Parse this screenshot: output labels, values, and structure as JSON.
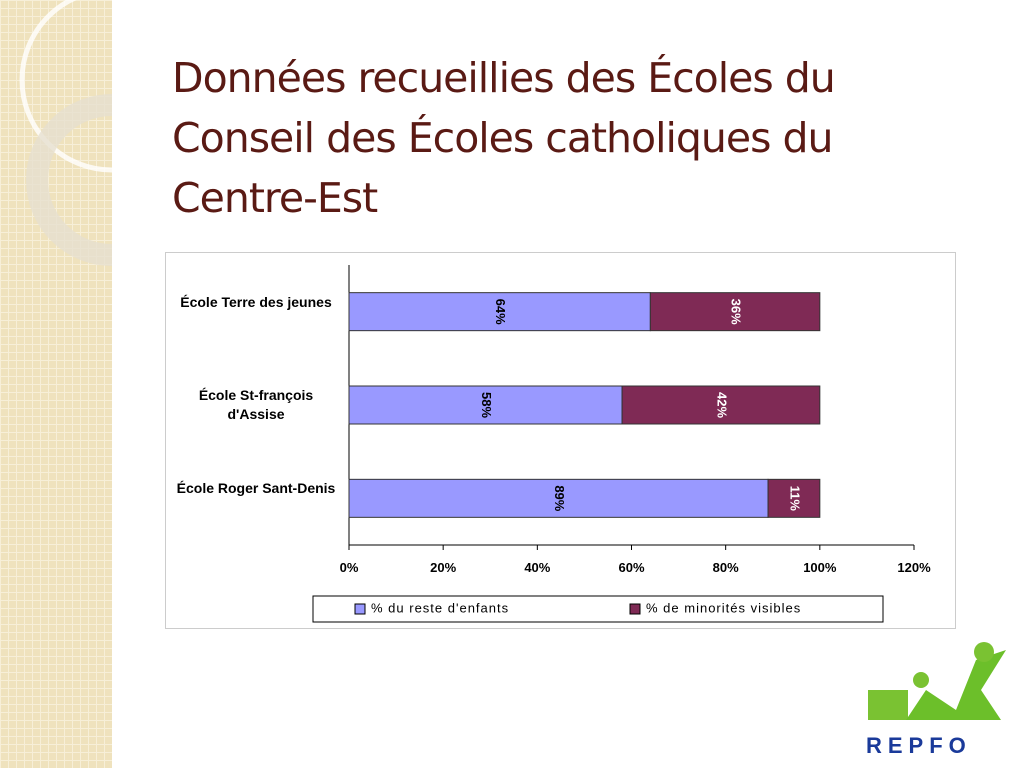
{
  "chart_data": {
    "type": "stacked-barh",
    "title": "Données recueillies des Écoles du Conseil des Écoles catholiques du Centre-Est",
    "categories": [
      "École Terre des jeunes",
      "École St-françois d'Assise",
      "École Roger Sant-Denis"
    ],
    "series": [
      {
        "name": "% du reste d'enfants",
        "color": "#9999ff",
        "values": [
          64,
          58,
          89
        ],
        "value_labels": [
          "64%",
          "58%",
          "89%"
        ]
      },
      {
        "name": "% de minorités visibles",
        "color": "#7f2a55",
        "values": [
          36,
          42,
          11
        ],
        "value_labels": [
          "36%",
          "42%",
          "11%"
        ]
      }
    ],
    "xlim": [
      0,
      120
    ],
    "xticks": [
      {
        "value": 0,
        "label": "0%"
      },
      {
        "value": 20,
        "label": "20%"
      },
      {
        "value": 40,
        "label": "40%"
      },
      {
        "value": 60,
        "label": "60%"
      },
      {
        "value": 80,
        "label": "80%"
      },
      {
        "value": 100,
        "label": "100%"
      },
      {
        "value": 120,
        "label": "120%"
      }
    ],
    "legend": "bottom"
  },
  "logo": "REPFO"
}
